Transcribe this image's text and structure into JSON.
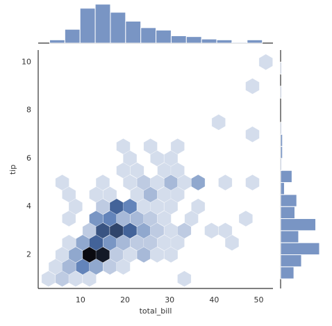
{
  "chart_data": {
    "type": "hexbin",
    "x_label": "total_bill",
    "y_label": "tip",
    "xlim": [
      0.5,
      53.2
    ],
    "ylim": [
      0.6,
      10.5
    ],
    "xticks": [
      10,
      20,
      30,
      40,
      50
    ],
    "yticks": [
      2,
      4,
      6,
      8,
      10
    ],
    "grid": false,
    "color": "#4c72b0",
    "cmap": [
      "#ebeff6",
      "#4c72b0",
      "#0a0a10"
    ],
    "hexbins": {
      "x": [
        2.8,
        5.9,
        8.9,
        12.0,
        33.3,
        4.4,
        7.4,
        10.5,
        13.5,
        16.6,
        19.6,
        5.9,
        8.9,
        12.0,
        15.0,
        18.1,
        21.1,
        24.2,
        27.2,
        30.3,
        7.4,
        10.5,
        13.5,
        16.6,
        19.6,
        22.7,
        25.7,
        28.8,
        31.8,
        44.0,
        12.0,
        15.0,
        18.1,
        21.1,
        24.2,
        27.2,
        30.3,
        33.3,
        39.4,
        42.5,
        7.4,
        13.5,
        16.6,
        19.6,
        22.7,
        25.7,
        28.8,
        34.9,
        47.1,
        8.9,
        15.0,
        18.1,
        21.1,
        24.2,
        27.2,
        30.3,
        36.4,
        7.4,
        13.5,
        16.6,
        22.7,
        25.7,
        28.8,
        31.8,
        5.9,
        15.0,
        21.1,
        24.2,
        27.2,
        30.3,
        33.3,
        36.4,
        42.5,
        48.6,
        19.6,
        22.7,
        28.8,
        31.8,
        21.1,
        27.2,
        30.3,
        19.6,
        25.7,
        31.8,
        48.6,
        41.0,
        48.6,
        51.6
      ],
      "y": [
        1,
        1,
        1,
        1,
        1,
        1.5,
        1.5,
        1.5,
        1.5,
        1.5,
        1.5,
        2,
        2,
        2,
        2,
        2,
        2,
        2,
        2,
        2,
        2.5,
        2.5,
        2.5,
        2.5,
        2.5,
        2.5,
        2.5,
        2.5,
        2.5,
        2.5,
        3,
        3,
        3,
        3,
        3,
        3,
        3,
        3,
        3,
        3,
        3.5,
        3.5,
        3.5,
        3.5,
        3.5,
        3.5,
        3.5,
        3.5,
        3.5,
        4,
        4,
        4,
        4,
        4,
        4,
        4,
        4,
        4.5,
        4.5,
        4.5,
        4.5,
        4.5,
        4.5,
        4.5,
        5,
        5,
        5,
        5,
        5,
        5,
        5,
        5,
        5,
        5,
        5.5,
        5.5,
        5.5,
        5.5,
        6,
        6,
        6,
        6.5,
        6.5,
        6.5,
        7,
        7.5,
        9,
        10
      ],
      "counts": [
        1,
        2,
        1,
        1,
        1,
        1,
        3,
        6,
        4,
        2,
        1,
        1,
        4,
        14,
        13,
        2,
        1,
        3,
        1,
        1,
        1,
        4,
        8,
        5,
        3,
        2,
        2,
        1,
        1,
        1,
        2,
        9,
        10,
        8,
        4,
        2,
        1,
        2,
        1,
        1,
        1,
        5,
        6,
        3,
        3,
        2,
        1,
        1,
        1,
        1,
        2,
        8,
        6,
        1,
        1,
        1,
        1,
        1,
        1,
        1,
        1,
        3,
        1,
        1,
        1,
        1,
        1,
        2,
        1,
        3,
        1,
        4,
        1,
        1,
        1,
        1,
        1,
        1,
        1,
        1,
        1,
        1,
        1,
        1,
        1,
        1,
        1,
        1
      ]
    },
    "marginal_x": {
      "bins": [
        3.07,
        6.48,
        9.89,
        13.3,
        16.71,
        20.12,
        23.53,
        26.94,
        30.35,
        33.76,
        37.17,
        40.58,
        43.99,
        47.4,
        50.81
      ],
      "counts": [
        4,
        17,
        43,
        48,
        38,
        27,
        19,
        16,
        9,
        8,
        5,
        4,
        1,
        4
      ]
    },
    "marginal_y": {
      "bins": [
        1,
        1.5,
        2,
        2.5,
        3,
        3.5,
        4,
        4.5,
        5,
        5.5,
        6,
        6.5,
        7,
        7.5,
        8,
        8.5,
        9,
        9.5,
        10
      ],
      "counts": [
        14,
        22,
        41,
        19,
        37,
        15,
        17,
        4,
        12,
        1,
        2,
        2,
        1,
        0,
        0,
        1,
        0,
        1
      ]
    }
  }
}
